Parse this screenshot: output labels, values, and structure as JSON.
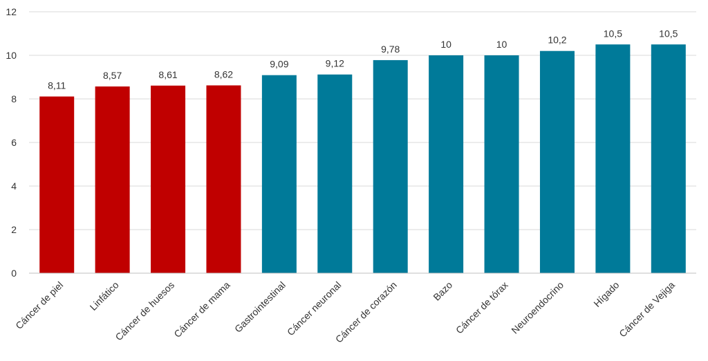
{
  "chart_data": {
    "type": "bar",
    "categories": [
      "Cáncer de piel",
      "Linfático",
      "Cáncer de huesos",
      "Cáncer de mama",
      "Gastrointestinal",
      "Cáncer neuronal",
      "Cáncer de corazón",
      "Bazo",
      "Cáncer de tórax",
      "Neuroendocrino",
      "Hígado",
      "Cáncer de Vejiga"
    ],
    "values": [
      8.11,
      8.57,
      8.61,
      8.62,
      9.09,
      9.12,
      9.78,
      10,
      10,
      10.2,
      10.5,
      10.5
    ],
    "value_labels": [
      "8,11",
      "8,57",
      "8,61",
      "8,62",
      "9,09",
      "9,12",
      "9,78",
      "10",
      "10",
      "10,2",
      "10,5",
      "10,5"
    ],
    "bar_colors": [
      "#c00000",
      "#c00000",
      "#c00000",
      "#c00000",
      "#007a99",
      "#007a99",
      "#007a99",
      "#007a99",
      "#007a99",
      "#007a99",
      "#007a99",
      "#007a99"
    ],
    "ylim": [
      0,
      12
    ],
    "yticks": [
      0,
      2,
      4,
      6,
      8,
      10,
      12
    ],
    "grid": true,
    "title": "",
    "xlabel": "",
    "ylabel": ""
  }
}
